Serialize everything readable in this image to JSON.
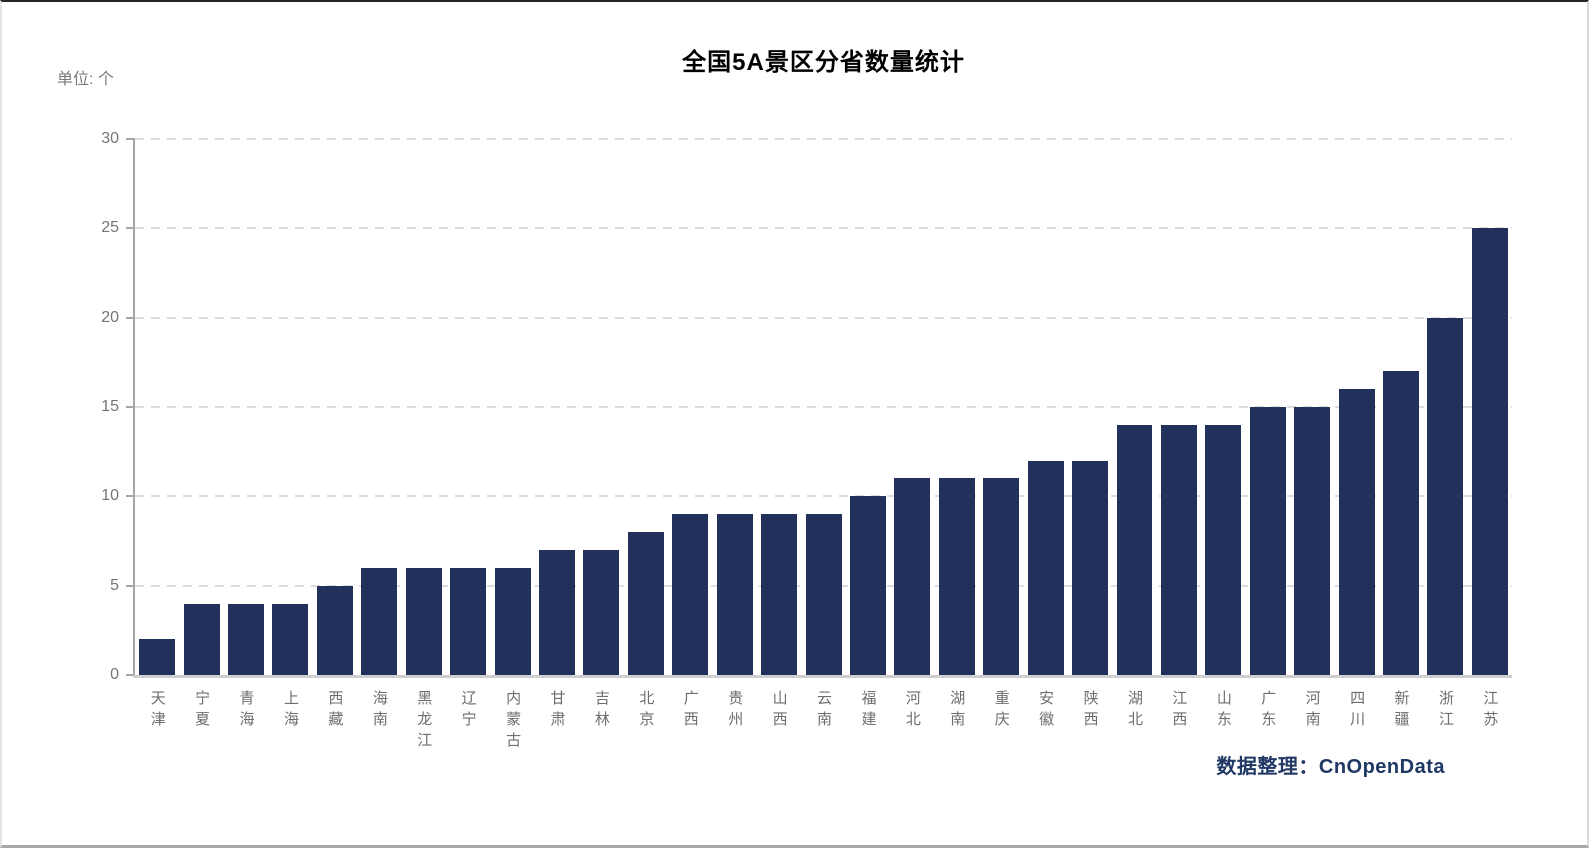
{
  "page": {
    "title": "全国5A景区分省数量统计",
    "unit_label": "单位: 个",
    "source_label": "数据整理：CnOpenData"
  },
  "colors": {
    "bar": "#22305c",
    "title_text": "#000000",
    "axis_line": "#a6a6a6",
    "x_axis_line": "#cfcfcf",
    "gridline": "#dbdbdb",
    "y_tick_label": "#757575",
    "category_label": "#6e6e6e",
    "source_text": "#1f3864"
  },
  "chart_data": {
    "type": "bar",
    "title": "全国5A景区分省数量统计",
    "xlabel": "",
    "ylabel": "单位: 个",
    "categories": [
      "天津",
      "宁夏",
      "青海",
      "上海",
      "西藏",
      "海南",
      "黑龙江",
      "辽宁",
      "内蒙古",
      "甘肃",
      "吉林",
      "北京",
      "广西",
      "贵州",
      "山西",
      "云南",
      "福建",
      "河北",
      "湖南",
      "重庆",
      "安徽",
      "陕西",
      "湖北",
      "江西",
      "山东",
      "广东",
      "河南",
      "四川",
      "新疆",
      "浙江",
      "江苏"
    ],
    "values": [
      2,
      4,
      4,
      4,
      5,
      6,
      6,
      6,
      6,
      7,
      7,
      8,
      9,
      9,
      9,
      9,
      10,
      11,
      11,
      11,
      12,
      12,
      14,
      14,
      14,
      15,
      15,
      16,
      17,
      20,
      25
    ],
    "ylim": [
      0,
      30
    ],
    "yticks": [
      0,
      5,
      10,
      15,
      20,
      25,
      30
    ],
    "grid": "horizontal-dashed",
    "legend": "none",
    "bar_color": "#22305c",
    "source": "数据整理：CnOpenData"
  }
}
